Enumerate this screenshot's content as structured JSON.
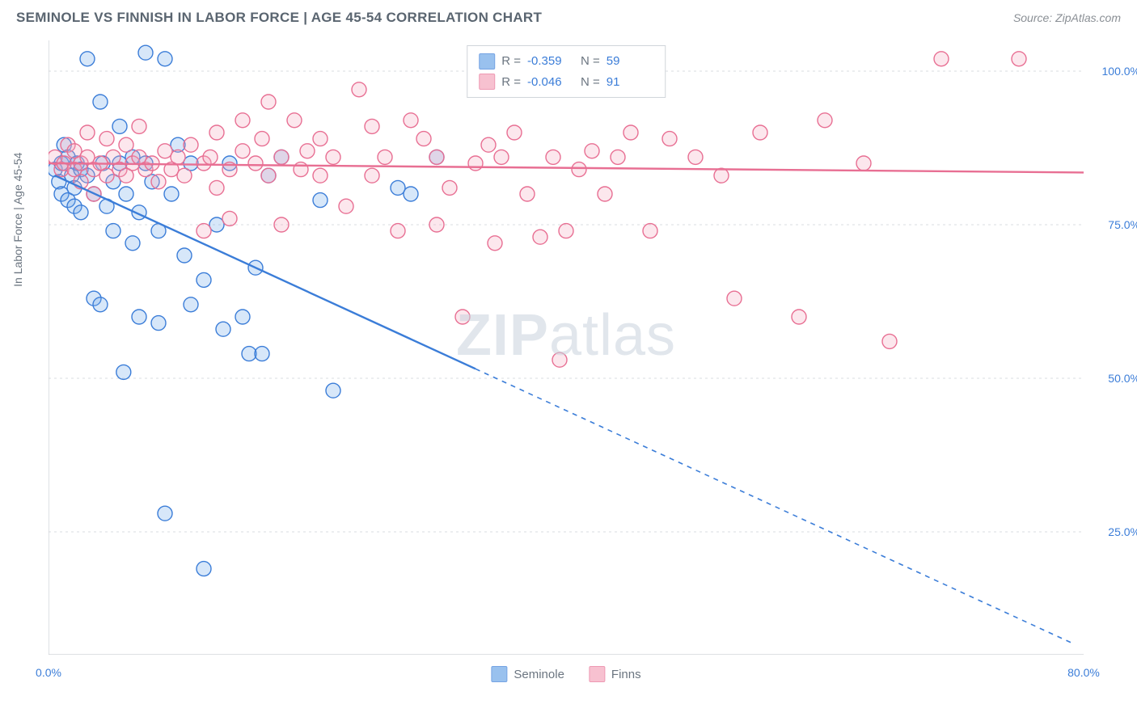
{
  "header": {
    "title": "SEMINOLE VS FINNISH IN LABOR FORCE | AGE 45-54 CORRELATION CHART",
    "source_prefix": "Source: ",
    "source": "ZipAtlas.com"
  },
  "chart": {
    "type": "scatter",
    "ylabel": "In Labor Force | Age 45-54",
    "xlim": [
      0,
      80
    ],
    "ylim": [
      5,
      105
    ],
    "x_ticks": [
      0,
      80
    ],
    "x_tick_labels": [
      "0.0%",
      "80.0%"
    ],
    "x_minor_ticks": [
      10,
      20,
      30,
      40,
      50,
      60,
      70
    ],
    "y_ticks": [
      25,
      50,
      75,
      100
    ],
    "y_tick_labels": [
      "25.0%",
      "50.0%",
      "75.0%",
      "100.0%"
    ],
    "background_color": "#ffffff",
    "grid_color": "#d9dde1",
    "axis_color": "#c9cdd2",
    "tick_label_color": "#3b7dd8",
    "marker_radius": 9,
    "marker_stroke_width": 1.4,
    "marker_fill_opacity": 0.28,
    "watermark": "ZIPatlas",
    "series": [
      {
        "name": "Seminole",
        "color": "#6fa8e8",
        "stroke": "#3b7dd8",
        "r": "-0.359",
        "n": "59",
        "trend": {
          "x1": 0.5,
          "y1": 83,
          "x2": 79,
          "y2": 7,
          "solid_until_x": 33
        },
        "points": [
          [
            0.5,
            84
          ],
          [
            0.8,
            82
          ],
          [
            1,
            85
          ],
          [
            1,
            80
          ],
          [
            1.2,
            88
          ],
          [
            1.5,
            86
          ],
          [
            1.5,
            79
          ],
          [
            1.8,
            83
          ],
          [
            2,
            81
          ],
          [
            2,
            78
          ],
          [
            2.2,
            85
          ],
          [
            2.5,
            77
          ],
          [
            2.5,
            84
          ],
          [
            3,
            102
          ],
          [
            3,
            83
          ],
          [
            3.5,
            80
          ],
          [
            3.5,
            63
          ],
          [
            4,
            95
          ],
          [
            4,
            62
          ],
          [
            4.2,
            85
          ],
          [
            4.5,
            78
          ],
          [
            5,
            82
          ],
          [
            5,
            74
          ],
          [
            5.5,
            91
          ],
          [
            5.5,
            85
          ],
          [
            5.8,
            51
          ],
          [
            6,
            80
          ],
          [
            6.5,
            86
          ],
          [
            6.5,
            72
          ],
          [
            7,
            60
          ],
          [
            7,
            77
          ],
          [
            7.5,
            85
          ],
          [
            7.5,
            103
          ],
          [
            8,
            82
          ],
          [
            8.5,
            59
          ],
          [
            8.5,
            74
          ],
          [
            9,
            102
          ],
          [
            9,
            28
          ],
          [
            9.5,
            80
          ],
          [
            10,
            88
          ],
          [
            10.5,
            70
          ],
          [
            11,
            62
          ],
          [
            11,
            85
          ],
          [
            12,
            19
          ],
          [
            12,
            66
          ],
          [
            13,
            75
          ],
          [
            13.5,
            58
          ],
          [
            14,
            85
          ],
          [
            15,
            60
          ],
          [
            15.5,
            54
          ],
          [
            16,
            68
          ],
          [
            16.5,
            54
          ],
          [
            17,
            83
          ],
          [
            18,
            86
          ],
          [
            21,
            79
          ],
          [
            22,
            48
          ],
          [
            27,
            81
          ],
          [
            28,
            80
          ],
          [
            30,
            86
          ]
        ]
      },
      {
        "name": "Finns",
        "color": "#f5a8bd",
        "stroke": "#e86f93",
        "r": "-0.046",
        "n": "91",
        "trend": {
          "x1": 0,
          "y1": 85,
          "x2": 80,
          "y2": 83.5,
          "solid_until_x": 80
        },
        "points": [
          [
            0.5,
            86
          ],
          [
            1,
            84
          ],
          [
            1.2,
            85
          ],
          [
            1.5,
            88
          ],
          [
            2,
            84
          ],
          [
            2,
            87
          ],
          [
            2.5,
            85
          ],
          [
            2.5,
            82
          ],
          [
            3,
            86
          ],
          [
            3,
            90
          ],
          [
            3.5,
            84
          ],
          [
            3.5,
            80
          ],
          [
            4,
            85
          ],
          [
            4.5,
            89
          ],
          [
            4.5,
            83
          ],
          [
            5,
            86
          ],
          [
            5.5,
            84
          ],
          [
            6,
            88
          ],
          [
            6,
            83
          ],
          [
            6.5,
            85
          ],
          [
            7,
            86
          ],
          [
            7,
            91
          ],
          [
            7.5,
            84
          ],
          [
            8,
            85
          ],
          [
            8.5,
            82
          ],
          [
            9,
            87
          ],
          [
            9.5,
            84
          ],
          [
            10,
            86
          ],
          [
            10.5,
            83
          ],
          [
            11,
            88
          ],
          [
            12,
            85
          ],
          [
            12,
            74
          ],
          [
            12.5,
            86
          ],
          [
            13,
            90
          ],
          [
            13,
            81
          ],
          [
            14,
            84
          ],
          [
            14,
            76
          ],
          [
            15,
            87
          ],
          [
            15,
            92
          ],
          [
            16,
            85
          ],
          [
            16.5,
            89
          ],
          [
            17,
            83
          ],
          [
            17,
            95
          ],
          [
            18,
            86
          ],
          [
            18,
            75
          ],
          [
            19,
            92
          ],
          [
            19.5,
            84
          ],
          [
            20,
            87
          ],
          [
            21,
            83
          ],
          [
            21,
            89
          ],
          [
            22,
            86
          ],
          [
            23,
            78
          ],
          [
            24,
            97
          ],
          [
            25,
            91
          ],
          [
            25,
            83
          ],
          [
            26,
            86
          ],
          [
            27,
            74
          ],
          [
            28,
            92
          ],
          [
            29,
            89
          ],
          [
            30,
            75
          ],
          [
            30,
            86
          ],
          [
            31,
            81
          ],
          [
            32,
            60
          ],
          [
            33,
            85
          ],
          [
            34,
            88
          ],
          [
            34.5,
            72
          ],
          [
            35,
            86
          ],
          [
            36,
            90
          ],
          [
            37,
            80
          ],
          [
            38,
            73
          ],
          [
            39,
            86
          ],
          [
            39.5,
            53
          ],
          [
            40,
            74
          ],
          [
            41,
            84
          ],
          [
            42,
            87
          ],
          [
            43,
            80
          ],
          [
            44,
            86
          ],
          [
            45,
            90
          ],
          [
            46,
            101
          ],
          [
            46.5,
            74
          ],
          [
            48,
            89
          ],
          [
            50,
            86
          ],
          [
            52,
            83
          ],
          [
            53,
            63
          ],
          [
            55,
            90
          ],
          [
            58,
            60
          ],
          [
            60,
            92
          ],
          [
            63,
            85
          ],
          [
            65,
            56
          ],
          [
            69,
            102
          ],
          [
            75,
            102
          ]
        ]
      }
    ],
    "legend": {
      "r_label": "R =",
      "n_label": "N ="
    }
  }
}
